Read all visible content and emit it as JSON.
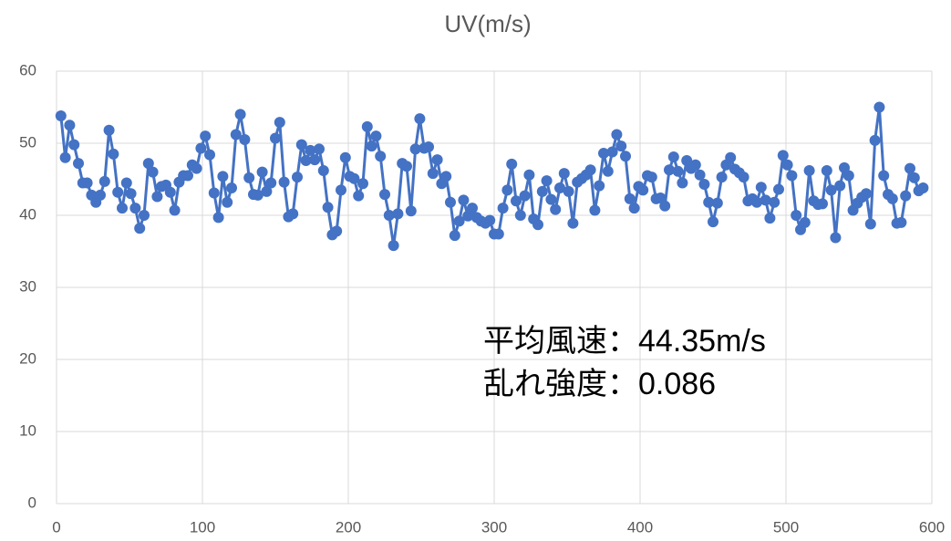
{
  "chart_data": {
    "type": "line",
    "title": "UV(m/s)",
    "x": [
      3,
      6,
      9,
      12,
      15,
      18,
      21,
      24,
      27,
      30,
      33,
      36,
      39,
      42,
      45,
      48,
      51,
      54,
      57,
      60,
      63,
      66,
      69,
      72,
      75,
      78,
      81,
      84,
      87,
      90,
      93,
      96,
      99,
      102,
      105,
      108,
      111,
      114,
      117,
      120,
      123,
      126,
      129,
      132,
      135,
      138,
      141,
      144,
      147,
      150,
      153,
      156,
      159,
      162,
      165,
      168,
      171,
      174,
      177,
      180,
      183,
      186,
      189,
      192,
      195,
      198,
      201,
      204,
      207,
      210,
      213,
      216,
      219,
      222,
      225,
      228,
      231,
      234,
      237,
      240,
      243,
      246,
      249,
      252,
      255,
      258,
      261,
      264,
      267,
      270,
      273,
      276,
      279,
      282,
      285,
      288,
      291,
      294,
      297,
      300,
      303,
      306,
      309,
      312,
      315,
      318,
      321,
      324,
      327,
      330,
      333,
      336,
      339,
      342,
      345,
      348,
      351,
      354,
      357,
      360,
      363,
      366,
      369,
      372,
      375,
      378,
      381,
      384,
      387,
      390,
      393,
      396,
      399,
      402,
      405,
      408,
      411,
      414,
      417,
      420,
      423,
      426,
      429,
      432,
      435,
      438,
      441,
      444,
      447,
      450,
      453,
      456,
      459,
      462,
      465,
      468,
      471,
      474,
      477,
      480,
      483,
      486,
      489,
      492,
      495,
      498,
      501,
      504,
      507,
      510,
      513,
      516,
      519,
      522,
      525,
      528,
      531,
      534,
      537,
      540,
      543,
      546,
      549,
      552,
      555,
      558,
      561,
      564,
      567,
      570,
      573,
      576,
      579,
      582,
      585,
      588,
      591,
      594
    ],
    "series": [
      {
        "name": "UV",
        "color": "#4472c4",
        "values": [
          53.8,
          48,
          52.5,
          49.8,
          47.2,
          44.5,
          44.5,
          42.8,
          41.8,
          42.8,
          44.7,
          51.8,
          48.5,
          43.2,
          41,
          44.5,
          43,
          41,
          38.2,
          40,
          47.2,
          46,
          42.6,
          44,
          44.2,
          43.2,
          40.7,
          44.6,
          45.5,
          45.5,
          47,
          46.5,
          49.3,
          51,
          48.4,
          43.1,
          39.7,
          45.4,
          41.8,
          43.8,
          51.2,
          54,
          50.5,
          45.2,
          42.9,
          42.8,
          46,
          43.3,
          44.5,
          50.7,
          52.9,
          44.6,
          39.8,
          40.2,
          45.3,
          49.8,
          47.6,
          49,
          47.7,
          49.2,
          46.2,
          41.1,
          37.3,
          37.8,
          43.5,
          48,
          45.4,
          45.1,
          42.7,
          44.4,
          52.3,
          49.6,
          51,
          48.2,
          42.9,
          40,
          35.8,
          40.2,
          47.2,
          46.8,
          40.6,
          49.2,
          53.4,
          49.3,
          49.5,
          45.8,
          47.7,
          44.4,
          45.4,
          41.8,
          37.2,
          39.2,
          42.1,
          39.9,
          41,
          39.7,
          39.2,
          38.9,
          39.3,
          37.4,
          37.4,
          41,
          43.5,
          47.1,
          42,
          40,
          42.7,
          45.6,
          39.5,
          38.7,
          43.3,
          44.8,
          42.2,
          40.8,
          43.8,
          45.8,
          43.3,
          38.9,
          44.6,
          45.1,
          45.6,
          46.3,
          40.7,
          44.1,
          48.6,
          46.1,
          48.8,
          51.2,
          49.6,
          48.2,
          42.3,
          41,
          44,
          43.5,
          45.5,
          45.3,
          42.3,
          42.4,
          41.3,
          46.3,
          48.1,
          46.1,
          44.5,
          47.6,
          46.5,
          47,
          45.6,
          44.3,
          41.8,
          39.1,
          41.7,
          45.3,
          47,
          48,
          46.4,
          45.9,
          45.3,
          42,
          42.3,
          41.8,
          43.9,
          42.1,
          39.6,
          41.8,
          43.6,
          48.3,
          47,
          45.5,
          40,
          38,
          39,
          46.2,
          42,
          41.5,
          41.6,
          46.2,
          43.5,
          36.9,
          44.1,
          46.6,
          45.5,
          40.7,
          41.7,
          42.5,
          43,
          38.8,
          50.4,
          55,
          45.5,
          42.9,
          42.3,
          38.9,
          39,
          42.7,
          46.5,
          45.2,
          43.4,
          43.8
        ]
      }
    ],
    "xlim": [
      0,
      600
    ],
    "xticks": [
      0,
      100,
      200,
      300,
      400,
      500,
      600
    ],
    "ylim": [
      0,
      60
    ],
    "yticks": [
      0,
      10,
      20,
      30,
      40,
      50,
      60
    ],
    "grid": true,
    "markers": true,
    "annotations": [
      "平均風速：44.35m/s",
      "乱れ強度：0.086"
    ]
  }
}
